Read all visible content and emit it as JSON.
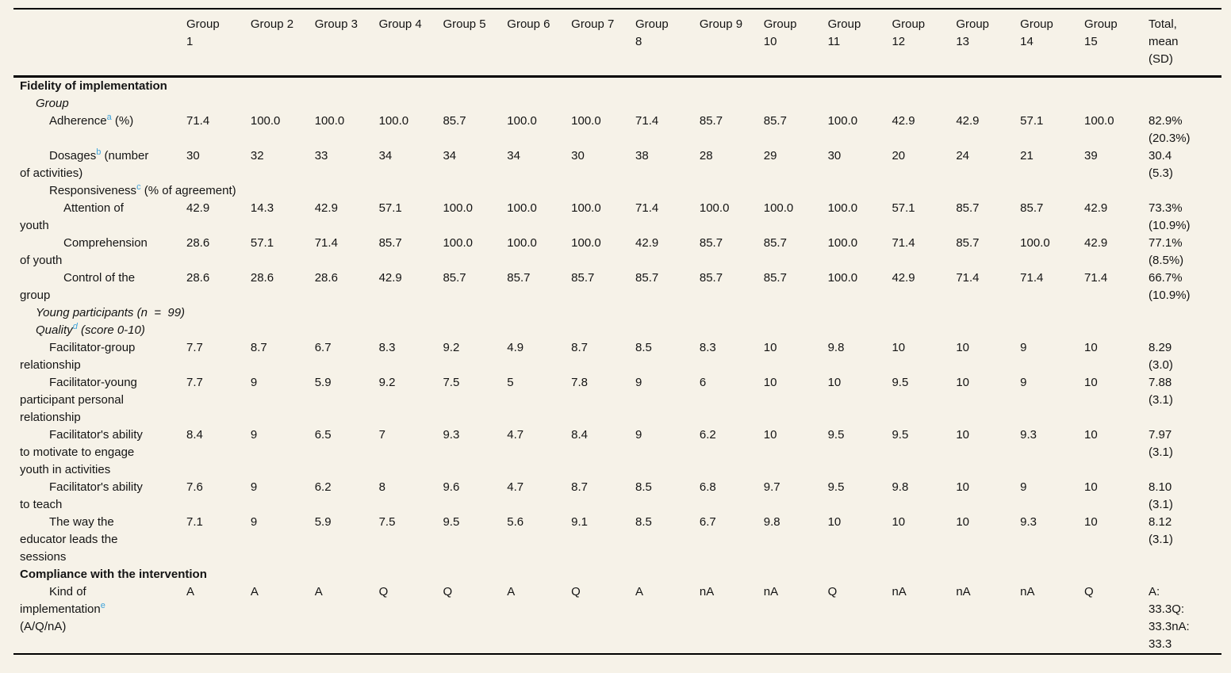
{
  "page": {
    "background_color": "#f6f2e8",
    "text_color": "#141414",
    "footnote_marker_color": "#3fa3da"
  },
  "table": {
    "columns": [
      "",
      "Group\n1",
      "Group 2",
      "Group 3",
      "Group 4",
      "Group 5",
      "Group 6",
      "Group 7",
      "Group\n8",
      "Group 9",
      "Group\n10",
      "Group\n11",
      "Group\n12",
      "Group\n13",
      "Group\n14",
      "Group\n15",
      "Total,\nmean\n(SD)"
    ],
    "rows": [
      {
        "type": "section",
        "label": [
          {
            "text": "Fidelity of implementation"
          }
        ]
      },
      {
        "type": "subsection",
        "label": [
          {
            "text": "Group"
          }
        ]
      },
      {
        "type": "data",
        "indent": 2,
        "label": [
          {
            "text": "Adherence"
          },
          {
            "sup": "a"
          },
          {
            "text": " (%)"
          }
        ],
        "values": [
          "71.4",
          "100.0",
          "100.0",
          "100.0",
          "85.7",
          "100.0",
          "100.0",
          "71.4",
          "85.7",
          "85.7",
          "100.0",
          "42.9",
          "42.9",
          "57.1",
          "100.0"
        ],
        "total": "82.9%\n(20.3%)"
      },
      {
        "type": "data",
        "indent": 2,
        "label": [
          {
            "text": "Dosages"
          },
          {
            "sup": "b"
          },
          {
            "text": " (number\nof activities)"
          }
        ],
        "values": [
          "30",
          "32",
          "33",
          "34",
          "34",
          "34",
          "30",
          "38",
          "28",
          "29",
          "30",
          "20",
          "24",
          "21",
          "39"
        ],
        "total": "30.4\n(5.3)"
      },
      {
        "type": "data",
        "indent": 2,
        "label": [
          {
            "text": "Responsiveness"
          },
          {
            "sup": "c"
          },
          {
            "text": " (% of agreement)"
          }
        ]
      },
      {
        "type": "data",
        "indent": 3,
        "label": [
          {
            "text": "Attention of\nyouth"
          }
        ],
        "values": [
          "42.9",
          "14.3",
          "42.9",
          "57.1",
          "100.0",
          "100.0",
          "100.0",
          "71.4",
          "100.0",
          "100.0",
          "100.0",
          "57.1",
          "85.7",
          "85.7",
          "42.9"
        ],
        "total": "73.3%\n(10.9%)"
      },
      {
        "type": "data",
        "indent": 3,
        "label": [
          {
            "text": "Comprehension\nof youth"
          }
        ],
        "values": [
          "28.6",
          "57.1",
          "71.4",
          "85.7",
          "100.0",
          "100.0",
          "100.0",
          "42.9",
          "85.7",
          "85.7",
          "100.0",
          "71.4",
          "85.7",
          "100.0",
          "42.9"
        ],
        "total": "77.1%\n(8.5%)"
      },
      {
        "type": "data",
        "indent": 3,
        "label": [
          {
            "text": "Control of the\ngroup"
          }
        ],
        "values": [
          "28.6",
          "28.6",
          "28.6",
          "42.9",
          "85.7",
          "85.7",
          "85.7",
          "85.7",
          "85.7",
          "85.7",
          "100.0",
          "42.9",
          "71.4",
          "71.4",
          "71.4"
        ],
        "total": "66.7%\n(10.9%)"
      },
      {
        "type": "subsection",
        "label": [
          {
            "text": "Young participants (n  =  99)"
          }
        ]
      },
      {
        "type": "subsection",
        "label": [
          {
            "text": "Quality"
          },
          {
            "sup": "d"
          },
          {
            "text": " (score 0-10)"
          }
        ]
      },
      {
        "type": "data",
        "indent": 2,
        "label": [
          {
            "text": "Facilitator-group\nrelationship"
          }
        ],
        "values": [
          "7.7",
          "8.7",
          "6.7",
          "8.3",
          "9.2",
          "4.9",
          "8.7",
          "8.5",
          "8.3",
          "10",
          "9.8",
          "10",
          "10",
          "9",
          "10"
        ],
        "total": "8.29\n(3.0)"
      },
      {
        "type": "data",
        "indent": 2,
        "label": [
          {
            "text": "Facilitator-young\nparticipant personal\nrelationship"
          }
        ],
        "values": [
          "7.7",
          "9",
          "5.9",
          "9.2",
          "7.5",
          "5",
          "7.8",
          "9",
          "6",
          "10",
          "10",
          "9.5",
          "10",
          "9",
          "10"
        ],
        "total": "7.88\n(3.1)"
      },
      {
        "type": "data",
        "indent": 2,
        "label": [
          {
            "text": "Facilitator's ability\nto motivate to engage\nyouth in activities"
          }
        ],
        "values": [
          "8.4",
          "9",
          "6.5",
          "7",
          "9.3",
          "4.7",
          "8.4",
          "9",
          "6.2",
          "10",
          "9.5",
          "9.5",
          "10",
          "9.3",
          "10"
        ],
        "total": "7.97\n(3.1)"
      },
      {
        "type": "data",
        "indent": 2,
        "label": [
          {
            "text": "Facilitator's ability\nto teach"
          }
        ],
        "values": [
          "7.6",
          "9",
          "6.2",
          "8",
          "9.6",
          "4.7",
          "8.7",
          "8.5",
          "6.8",
          "9.7",
          "9.5",
          "9.8",
          "10",
          "9",
          "10"
        ],
        "total": "8.10\n(3.1)"
      },
      {
        "type": "data",
        "indent": 2,
        "label": [
          {
            "text": "The way the\neducator leads the\nsessions"
          }
        ],
        "values": [
          "7.1",
          "9",
          "5.9",
          "7.5",
          "9.5",
          "5.6",
          "9.1",
          "8.5",
          "6.7",
          "9.8",
          "10",
          "10",
          "10",
          "9.3",
          "10"
        ],
        "total": "8.12\n(3.1)"
      },
      {
        "type": "section",
        "label": [
          {
            "text": "Compliance with the intervention"
          }
        ]
      },
      {
        "type": "data",
        "indent": 2,
        "label": [
          {
            "text": "Kind of\nimplementation"
          },
          {
            "sup": "e"
          },
          {
            "text": "\n(A/Q/nA)"
          }
        ],
        "values": [
          "A",
          "A",
          "A",
          "Q",
          "Q",
          "A",
          "Q",
          "A",
          "nA",
          "nA",
          "Q",
          "nA",
          "nA",
          "nA",
          "Q"
        ],
        "total": "A:\n33.3Q:\n33.3nA:\n33.3"
      }
    ]
  }
}
